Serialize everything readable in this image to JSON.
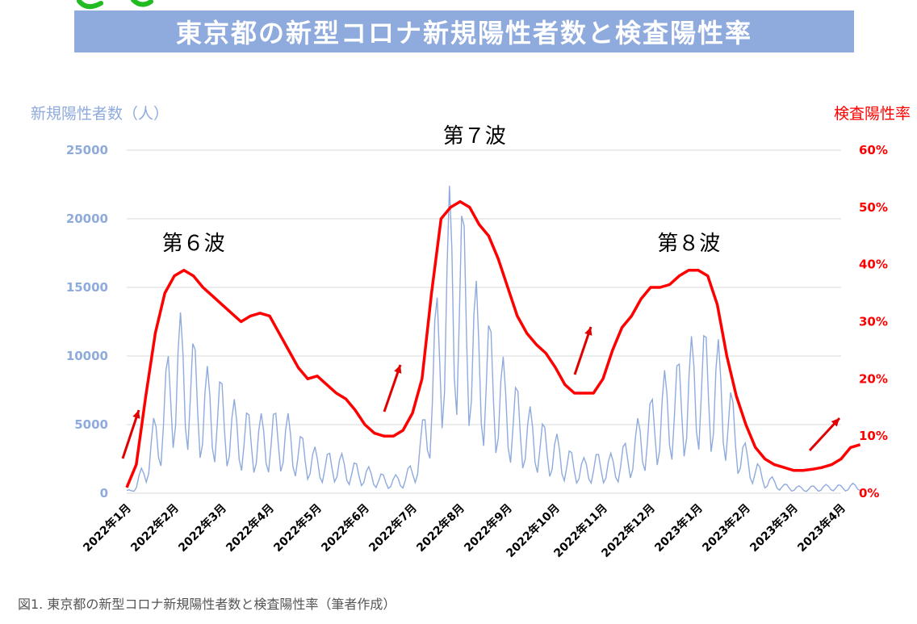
{
  "header": {
    "title": "東京都の新型コロナ新規陽性者数と検査陽性率"
  },
  "caption": "図1. 東京都の新型コロナ新規陽性者数と検査陽性率（筆者作成）",
  "colors": {
    "cases": "#8faadc",
    "rate": "#ff0000",
    "banner": "#8faadc",
    "arrow": "#e00000"
  },
  "chart_data": {
    "type": "line",
    "y_left": {
      "label": "新規陽性者数（人）",
      "lim": [
        0,
        25000
      ],
      "ticks": [
        "0",
        "5000",
        "10000",
        "15000",
        "20000",
        "25000"
      ]
    },
    "y_right": {
      "label": "検査陽性率",
      "lim": [
        0,
        0.6
      ],
      "ticks": [
        "0%",
        "10%",
        "20%",
        "30%",
        "40%",
        "50%",
        "60%"
      ]
    },
    "x_ticks": [
      "2022年1月",
      "2022年2月",
      "2022年3月",
      "2022年4月",
      "2022年5月",
      "2022年6月",
      "2022年7月",
      "2022年8月",
      "2022年9月",
      "2022年10月",
      "2022年11月",
      "2022年12月",
      "2023年1月",
      "2023年2月",
      "2023年3月",
      "2023年4月"
    ],
    "grid": true,
    "annotations": [
      {
        "text": "第６波",
        "month": 1.4
      },
      {
        "text": "第７波",
        "month": 7.3
      },
      {
        "text": "第８波",
        "month": 11.8
      }
    ],
    "series": [
      {
        "name": "新規陽性者数",
        "axis": "left",
        "x": [
          0.0,
          0.2,
          0.4,
          0.6,
          0.8,
          1.0,
          1.2,
          1.4,
          1.6,
          1.8,
          2.0,
          2.2,
          2.4,
          2.6,
          2.8,
          3.0,
          3.2,
          3.4,
          3.6,
          3.8,
          4.0,
          4.2,
          4.4,
          4.6,
          4.8,
          5.0,
          5.2,
          5.4,
          5.6,
          5.8,
          6.0,
          6.2,
          6.4,
          6.6,
          6.8,
          7.0,
          7.2,
          7.4,
          7.6,
          7.8,
          8.0,
          8.2,
          8.4,
          8.6,
          8.8,
          9.0,
          9.2,
          9.4,
          9.6,
          9.8,
          10.0,
          10.2,
          10.4,
          10.6,
          10.8,
          11.0,
          11.2,
          11.4,
          11.6,
          11.8,
          12.0,
          12.2,
          12.4,
          12.6,
          12.8,
          13.0,
          13.2,
          13.4,
          13.6,
          13.8,
          14.0,
          14.2,
          14.4,
          14.6,
          14.8,
          15.0,
          15.2,
          15.4
        ],
        "values": [
          200,
          700,
          3000,
          6000,
          9000,
          13500,
          13000,
          11500,
          9500,
          9000,
          8500,
          7000,
          6500,
          6000,
          5800,
          6000,
          6300,
          5800,
          4500,
          4000,
          3200,
          3000,
          3300,
          2600,
          2300,
          2100,
          1700,
          1400,
          1300,
          1500,
          2300,
          5000,
          11000,
          18000,
          23000,
          22000,
          19000,
          14000,
          13000,
          11000,
          9000,
          8000,
          6500,
          6000,
          5000,
          4500,
          3500,
          3000,
          2600,
          3000,
          3000,
          2900,
          3500,
          4500,
          6000,
          7000,
          8500,
          9500,
          10000,
          11000,
          12500,
          12000,
          11500,
          9000,
          6000,
          3500,
          2500,
          1500,
          1100,
          700,
          600,
          500,
          550,
          600,
          700,
          600,
          700,
          800
        ]
      },
      {
        "name": "検査陽性率",
        "axis": "right",
        "x": [
          0.0,
          0.2,
          0.4,
          0.6,
          0.8,
          1.0,
          1.2,
          1.4,
          1.6,
          1.8,
          2.0,
          2.2,
          2.4,
          2.6,
          2.8,
          3.0,
          3.2,
          3.4,
          3.6,
          3.8,
          4.0,
          4.2,
          4.4,
          4.6,
          4.8,
          5.0,
          5.2,
          5.4,
          5.6,
          5.8,
          6.0,
          6.2,
          6.4,
          6.6,
          6.8,
          7.0,
          7.2,
          7.4,
          7.6,
          7.8,
          8.0,
          8.2,
          8.4,
          8.6,
          8.8,
          9.0,
          9.2,
          9.4,
          9.6,
          9.8,
          10.0,
          10.2,
          10.4,
          10.6,
          10.8,
          11.0,
          11.2,
          11.4,
          11.6,
          11.8,
          12.0,
          12.2,
          12.4,
          12.6,
          12.8,
          13.0,
          13.2,
          13.4,
          13.6,
          13.8,
          14.0,
          14.2,
          14.4,
          14.6,
          14.8,
          15.0,
          15.2,
          15.4
        ],
        "values": [
          0.01,
          0.05,
          0.17,
          0.28,
          0.35,
          0.38,
          0.39,
          0.38,
          0.36,
          0.345,
          0.33,
          0.315,
          0.3,
          0.31,
          0.315,
          0.31,
          0.28,
          0.25,
          0.22,
          0.2,
          0.205,
          0.19,
          0.175,
          0.165,
          0.145,
          0.12,
          0.105,
          0.1,
          0.1,
          0.11,
          0.14,
          0.2,
          0.35,
          0.48,
          0.5,
          0.51,
          0.5,
          0.47,
          0.45,
          0.41,
          0.36,
          0.31,
          0.28,
          0.26,
          0.245,
          0.22,
          0.19,
          0.175,
          0.175,
          0.175,
          0.2,
          0.25,
          0.29,
          0.31,
          0.34,
          0.36,
          0.36,
          0.365,
          0.38,
          0.39,
          0.39,
          0.38,
          0.33,
          0.24,
          0.17,
          0.12,
          0.08,
          0.06,
          0.05,
          0.045,
          0.04,
          0.04,
          0.042,
          0.045,
          0.05,
          0.06,
          0.08,
          0.085
        ]
      }
    ]
  }
}
